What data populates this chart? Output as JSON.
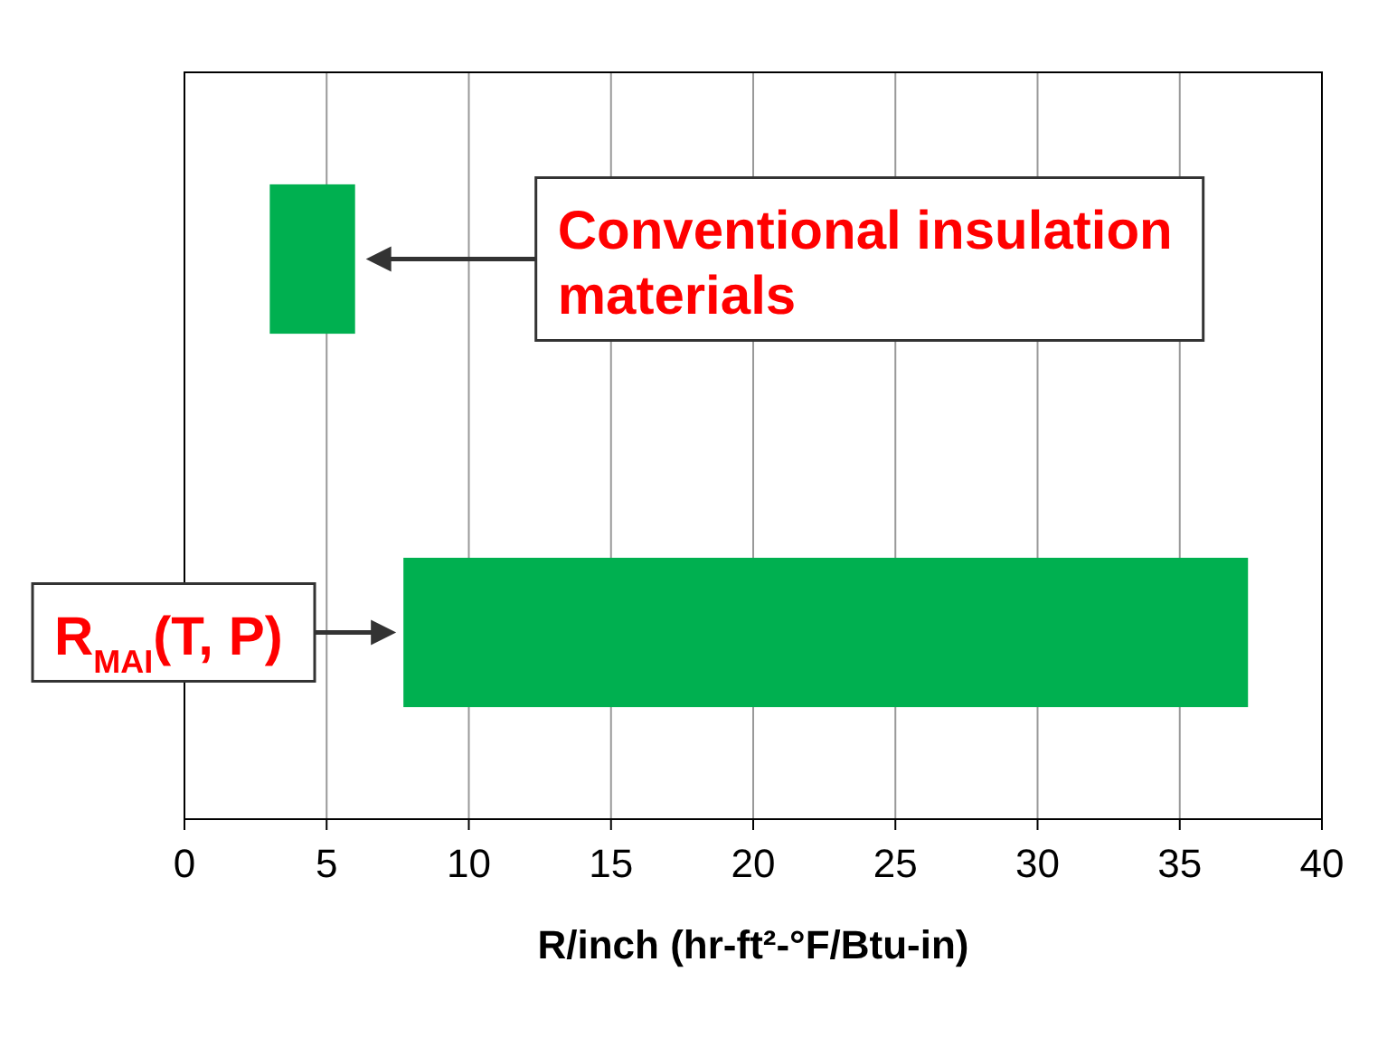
{
  "chart_data": {
    "type": "bar",
    "orientation": "horizontal",
    "categories": [
      null,
      null
    ],
    "base": [
      3,
      7.7
    ],
    "values": [
      3,
      29.7
    ],
    "color": "#00b050",
    "xlim": [
      0,
      40
    ],
    "xticks": [
      0,
      5,
      10,
      15,
      20,
      25,
      30,
      35,
      40
    ],
    "xlabel": "R/inch (hr-ft²-°F/Btu-in)",
    "grid": "x",
    "annotations": [
      "Conventional insulation materials",
      "R$_{MAI}$(T, P)"
    ]
  }
}
